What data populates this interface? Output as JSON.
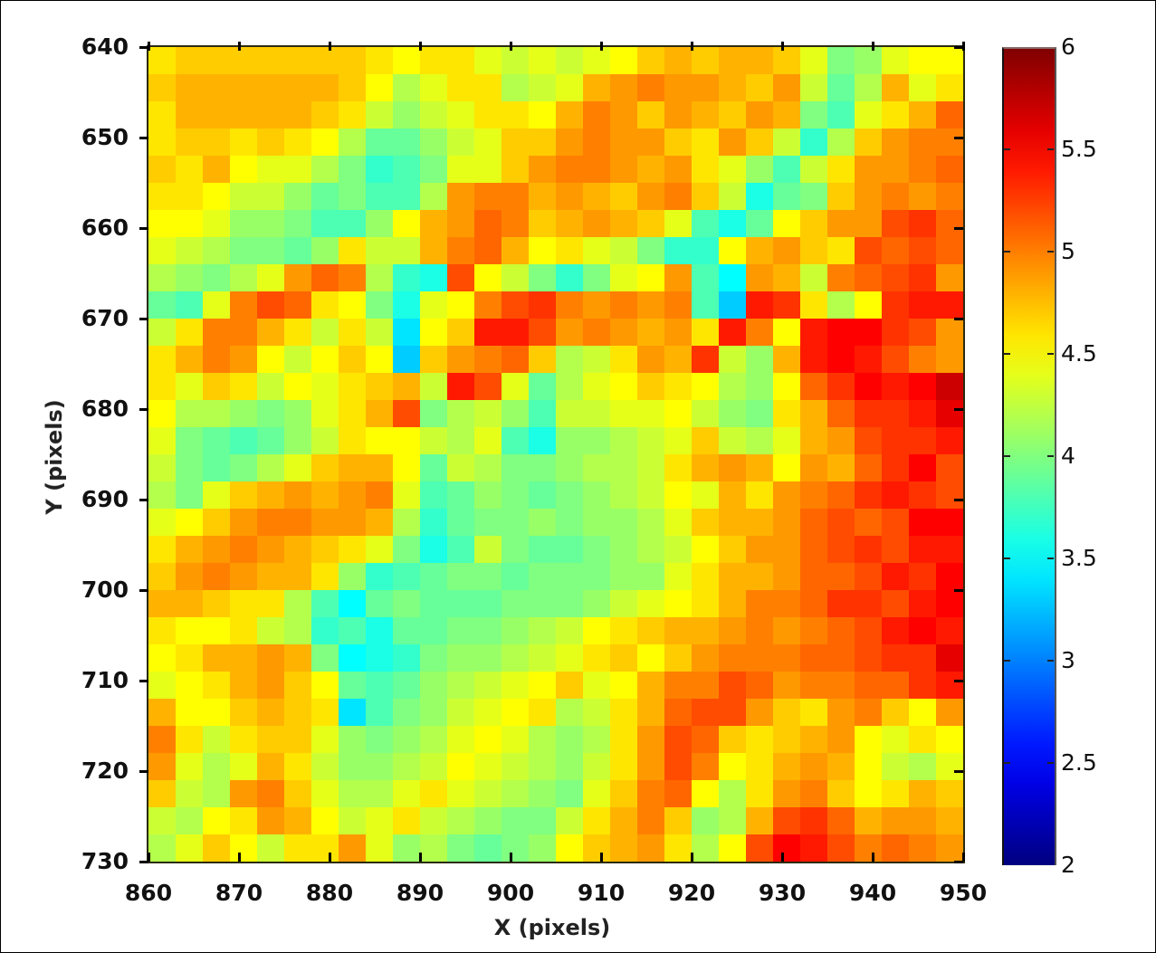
{
  "chart_data": {
    "type": "heatmap",
    "title": "",
    "xlabel": "X (pixels)",
    "ylabel": "Y (pixels)",
    "xlim": [
      860,
      950
    ],
    "ylim": [
      640,
      730
    ],
    "y_axis_direction": "top-to-bottom increasing",
    "x_ticks": [
      860,
      870,
      880,
      890,
      900,
      910,
      920,
      930,
      940,
      950
    ],
    "y_ticks": [
      640,
      650,
      660,
      670,
      680,
      690,
      700,
      710,
      720,
      730
    ],
    "colorbar": {
      "colormap": "jet",
      "range": [
        2,
        6
      ],
      "ticks": [
        "2",
        "2.5",
        "3",
        "3.5",
        "4",
        "4.5",
        "5",
        "5.5",
        "6"
      ]
    },
    "grid": false,
    "legend": "colorbar right",
    "grid_cell_size_pixels": 3,
    "grid_columns_x_start": 860,
    "grid_rows_y_start": 640,
    "values_description": "Estimated values per 3x3-pixel cell, rows from Y=640 (top) to Y=730 (bottom), columns from X=860 to X=950",
    "values": [
      [
        4.6,
        4.7,
        4.7,
        4.7,
        4.7,
        4.7,
        4.7,
        4.7,
        4.6,
        4.5,
        4.6,
        4.6,
        4.4,
        4.3,
        4.4,
        4.3,
        4.4,
        4.5,
        4.7,
        4.8,
        4.7,
        4.8,
        4.8,
        4.7,
        4.4,
        4.0,
        4.1,
        4.4,
        4.5,
        4.5
      ],
      [
        4.7,
        4.8,
        4.8,
        4.8,
        4.8,
        4.8,
        4.8,
        4.7,
        4.5,
        4.2,
        4.4,
        4.6,
        4.6,
        4.2,
        4.3,
        4.4,
        4.8,
        4.9,
        5.0,
        4.9,
        4.9,
        4.8,
        4.7,
        4.9,
        4.3,
        3.9,
        4.2,
        4.8,
        4.4,
        4.6
      ],
      [
        4.6,
        4.8,
        4.8,
        4.8,
        4.8,
        4.8,
        4.7,
        4.6,
        4.3,
        4.1,
        4.3,
        4.4,
        4.6,
        4.6,
        4.5,
        4.8,
        5.0,
        4.9,
        4.7,
        4.9,
        4.8,
        4.7,
        4.9,
        4.8,
        4.0,
        3.8,
        4.4,
        4.6,
        4.8,
        5.1
      ],
      [
        4.6,
        4.7,
        4.7,
        4.6,
        4.7,
        4.6,
        4.5,
        4.2,
        3.9,
        3.9,
        4.1,
        4.3,
        4.4,
        4.7,
        4.7,
        4.9,
        5.0,
        4.9,
        4.9,
        4.7,
        4.6,
        4.9,
        4.7,
        4.3,
        3.7,
        4.2,
        4.7,
        4.9,
        5.0,
        5.0
      ],
      [
        4.7,
        4.6,
        4.8,
        4.5,
        4.4,
        4.4,
        4.2,
        4.0,
        3.7,
        3.8,
        4.0,
        4.4,
        4.4,
        4.7,
        4.9,
        5.0,
        5.0,
        4.9,
        4.8,
        4.9,
        4.6,
        4.4,
        4.1,
        3.8,
        4.3,
        4.6,
        4.9,
        4.9,
        5.0,
        5.1
      ],
      [
        4.6,
        4.6,
        4.5,
        4.3,
        4.3,
        4.1,
        3.9,
        4.0,
        3.8,
        3.8,
        4.2,
        4.9,
        5.0,
        5.0,
        4.8,
        4.9,
        4.8,
        4.7,
        4.9,
        5.0,
        4.7,
        4.3,
        3.6,
        3.9,
        4.0,
        4.7,
        4.9,
        5.0,
        4.9,
        5.0
      ],
      [
        4.5,
        4.5,
        4.4,
        4.1,
        4.1,
        4.0,
        3.8,
        3.8,
        4.1,
        4.5,
        4.8,
        4.9,
        5.1,
        5.0,
        4.7,
        4.8,
        4.9,
        4.8,
        4.7,
        4.4,
        3.8,
        3.6,
        3.9,
        4.5,
        4.7,
        4.9,
        4.9,
        5.2,
        5.3,
        5.1
      ],
      [
        4.4,
        4.3,
        4.2,
        4.0,
        4.0,
        3.9,
        4.1,
        4.6,
        4.3,
        4.3,
        4.8,
        5.0,
        5.1,
        4.8,
        4.5,
        4.6,
        4.4,
        4.3,
        4.0,
        3.7,
        3.7,
        4.5,
        4.8,
        4.9,
        4.7,
        4.6,
        5.2,
        5.1,
        5.2,
        5.1
      ],
      [
        4.2,
        4.1,
        4.0,
        4.2,
        4.4,
        4.9,
        5.1,
        5.0,
        4.2,
        3.7,
        3.6,
        5.2,
        4.5,
        4.3,
        4.0,
        3.7,
        4.0,
        4.4,
        4.5,
        4.9,
        3.8,
        3.5,
        4.9,
        4.8,
        4.3,
        5.0,
        5.1,
        5.2,
        5.3,
        4.9
      ],
      [
        3.9,
        3.8,
        4.4,
        5.0,
        5.2,
        5.1,
        4.6,
        4.5,
        4.0,
        3.6,
        4.4,
        4.5,
        5.0,
        5.2,
        5.3,
        5.0,
        4.9,
        5.0,
        4.9,
        5.0,
        3.8,
        3.3,
        5.4,
        5.3,
        4.6,
        4.2,
        4.5,
        5.3,
        5.4,
        5.4
      ],
      [
        4.3,
        4.6,
        5.0,
        5.0,
        4.8,
        4.6,
        4.3,
        4.6,
        4.3,
        3.4,
        4.5,
        4.7,
        5.4,
        5.4,
        5.2,
        4.9,
        5.0,
        4.9,
        4.8,
        4.9,
        4.6,
        5.4,
        5.0,
        4.5,
        5.4,
        5.5,
        5.5,
        5.3,
        5.2,
        4.9
      ],
      [
        4.6,
        4.8,
        5.0,
        4.9,
        4.5,
        4.3,
        4.5,
        4.7,
        4.5,
        3.3,
        4.7,
        4.9,
        5.0,
        5.1,
        4.7,
        4.2,
        4.3,
        4.6,
        4.9,
        4.8,
        5.3,
        4.3,
        4.1,
        4.8,
        5.4,
        5.5,
        5.4,
        5.2,
        5.0,
        4.9
      ],
      [
        4.6,
        4.4,
        4.7,
        4.6,
        4.3,
        4.5,
        4.4,
        4.6,
        4.7,
        4.8,
        4.3,
        5.4,
        5.2,
        4.4,
        3.9,
        4.2,
        4.4,
        4.5,
        4.7,
        4.6,
        4.5,
        4.2,
        4.1,
        4.5,
        5.1,
        5.3,
        5.5,
        5.4,
        5.5,
        5.7
      ],
      [
        4.5,
        4.2,
        4.2,
        4.1,
        4.0,
        4.1,
        4.4,
        4.6,
        4.8,
        5.2,
        4.0,
        4.2,
        4.3,
        4.1,
        3.8,
        4.3,
        4.3,
        4.4,
        4.4,
        4.5,
        4.3,
        4.1,
        4.0,
        4.6,
        4.8,
        5.1,
        5.3,
        5.3,
        5.4,
        5.6
      ],
      [
        4.4,
        4.0,
        3.9,
        3.8,
        3.9,
        4.1,
        4.3,
        4.6,
        4.5,
        4.5,
        4.3,
        4.2,
        4.4,
        3.8,
        3.6,
        4.1,
        4.1,
        4.2,
        4.3,
        4.4,
        4.7,
        4.3,
        4.2,
        4.4,
        4.8,
        4.9,
        5.2,
        5.3,
        5.3,
        5.4
      ],
      [
        4.3,
        4.0,
        3.9,
        4.0,
        4.2,
        4.4,
        4.7,
        4.8,
        4.8,
        4.5,
        3.9,
        4.3,
        4.2,
        4.0,
        4.0,
        4.1,
        4.2,
        4.2,
        4.3,
        4.6,
        4.8,
        4.9,
        4.8,
        4.5,
        4.9,
        4.8,
        5.1,
        5.3,
        5.5,
        5.2
      ],
      [
        4.2,
        4.0,
        4.4,
        4.7,
        4.8,
        4.9,
        4.8,
        4.9,
        5.0,
        4.4,
        3.8,
        3.9,
        4.1,
        4.0,
        3.9,
        4.0,
        4.1,
        4.2,
        4.3,
        4.5,
        4.4,
        4.8,
        4.6,
        4.9,
        5.0,
        5.1,
        5.3,
        5.4,
        5.3,
        5.2
      ],
      [
        4.4,
        4.5,
        4.7,
        4.9,
        5.0,
        5.0,
        4.9,
        4.9,
        4.8,
        4.2,
        3.7,
        3.9,
        4.0,
        4.0,
        4.1,
        4.0,
        4.1,
        4.1,
        4.2,
        4.4,
        4.7,
        4.8,
        4.8,
        4.9,
        5.1,
        5.2,
        5.1,
        5.2,
        5.5,
        5.5
      ],
      [
        4.6,
        4.8,
        4.9,
        5.0,
        4.9,
        4.8,
        4.7,
        4.6,
        4.4,
        4.0,
        3.6,
        3.8,
        4.3,
        4.0,
        3.9,
        3.9,
        4.0,
        4.1,
        4.2,
        4.3,
        4.5,
        4.7,
        4.9,
        4.9,
        5.1,
        5.2,
        5.3,
        5.2,
        5.4,
        5.4
      ],
      [
        4.7,
        4.9,
        5.0,
        4.9,
        4.8,
        4.8,
        4.6,
        4.1,
        3.7,
        3.8,
        3.9,
        4.0,
        4.0,
        3.9,
        4.0,
        4.0,
        4.0,
        4.1,
        4.1,
        4.4,
        4.6,
        4.8,
        4.8,
        4.9,
        5.1,
        5.1,
        5.2,
        5.4,
        5.3,
        5.5
      ],
      [
        4.8,
        4.8,
        4.7,
        4.6,
        4.6,
        4.2,
        3.8,
        3.5,
        3.9,
        4.0,
        3.9,
        3.9,
        3.9,
        4.0,
        4.0,
        4.0,
        4.1,
        4.3,
        4.4,
        4.5,
        4.6,
        4.8,
        5.0,
        5.0,
        5.1,
        5.3,
        5.3,
        5.2,
        5.4,
        5.5
      ],
      [
        4.6,
        4.5,
        4.5,
        4.6,
        4.3,
        4.2,
        3.7,
        3.8,
        3.6,
        3.9,
        3.9,
        4.0,
        4.0,
        4.1,
        4.2,
        4.3,
        4.5,
        4.6,
        4.7,
        4.8,
        4.8,
        4.9,
        5.0,
        4.9,
        5.0,
        5.1,
        5.2,
        5.4,
        5.5,
        5.4
      ],
      [
        4.5,
        4.6,
        4.8,
        4.8,
        4.9,
        4.8,
        4.0,
        3.5,
        3.6,
        3.7,
        4.0,
        4.1,
        4.1,
        4.2,
        4.3,
        4.4,
        4.6,
        4.7,
        4.5,
        4.7,
        4.9,
        5.0,
        5.0,
        5.0,
        5.1,
        5.1,
        5.2,
        5.3,
        5.3,
        5.6
      ],
      [
        4.4,
        4.5,
        4.6,
        4.8,
        4.9,
        4.7,
        4.5,
        3.9,
        3.8,
        3.9,
        4.1,
        4.2,
        4.3,
        4.4,
        4.5,
        4.7,
        4.4,
        4.5,
        4.8,
        5.0,
        5.0,
        5.2,
        5.1,
        4.9,
        5.0,
        5.0,
        5.1,
        5.1,
        5.3,
        5.4
      ],
      [
        4.8,
        4.5,
        4.5,
        4.7,
        4.8,
        4.7,
        4.6,
        3.4,
        3.8,
        4.0,
        4.1,
        4.3,
        4.4,
        4.5,
        4.6,
        4.2,
        4.3,
        4.6,
        4.8,
        5.1,
        5.2,
        5.2,
        4.9,
        4.7,
        4.6,
        4.9,
        5.0,
        4.7,
        4.5,
        4.9
      ],
      [
        5.0,
        4.6,
        4.3,
        4.6,
        4.7,
        4.7,
        4.4,
        4.1,
        4.0,
        4.1,
        4.2,
        4.4,
        4.5,
        4.4,
        4.2,
        4.1,
        4.2,
        4.6,
        4.9,
        5.2,
        5.1,
        4.7,
        4.6,
        4.7,
        4.8,
        4.9,
        4.5,
        4.4,
        4.6,
        4.5
      ],
      [
        4.9,
        4.4,
        4.2,
        4.4,
        4.8,
        4.6,
        4.3,
        4.1,
        4.1,
        4.2,
        4.3,
        4.5,
        4.4,
        4.3,
        4.2,
        4.1,
        4.3,
        4.6,
        4.9,
        5.2,
        5.0,
        4.5,
        4.6,
        4.8,
        4.9,
        4.8,
        4.5,
        4.3,
        4.2,
        4.4
      ],
      [
        4.7,
        4.3,
        4.2,
        4.9,
        5.0,
        4.7,
        4.4,
        4.2,
        4.2,
        4.4,
        4.6,
        4.4,
        4.3,
        4.2,
        4.1,
        4.0,
        4.4,
        4.7,
        5.0,
        5.1,
        4.5,
        4.2,
        4.6,
        4.9,
        5.0,
        4.7,
        4.5,
        4.6,
        4.8,
        4.7
      ],
      [
        4.3,
        4.2,
        4.5,
        4.6,
        4.9,
        4.8,
        4.5,
        4.3,
        4.4,
        4.6,
        4.3,
        4.2,
        4.1,
        4.0,
        4.0,
        4.3,
        4.6,
        4.8,
        5.0,
        4.7,
        4.1,
        4.2,
        4.8,
        5.2,
        5.3,
        5.1,
        4.8,
        4.9,
        4.9,
        4.8
      ],
      [
        4.2,
        4.4,
        4.7,
        4.5,
        4.3,
        4.6,
        4.6,
        4.9,
        4.4,
        4.1,
        4.2,
        4.0,
        3.9,
        4.0,
        4.1,
        4.5,
        4.7,
        4.8,
        4.9,
        4.6,
        4.2,
        4.5,
        5.2,
        5.5,
        5.4,
        5.2,
        5.0,
        5.1,
        5.0,
        4.9
      ]
    ]
  }
}
